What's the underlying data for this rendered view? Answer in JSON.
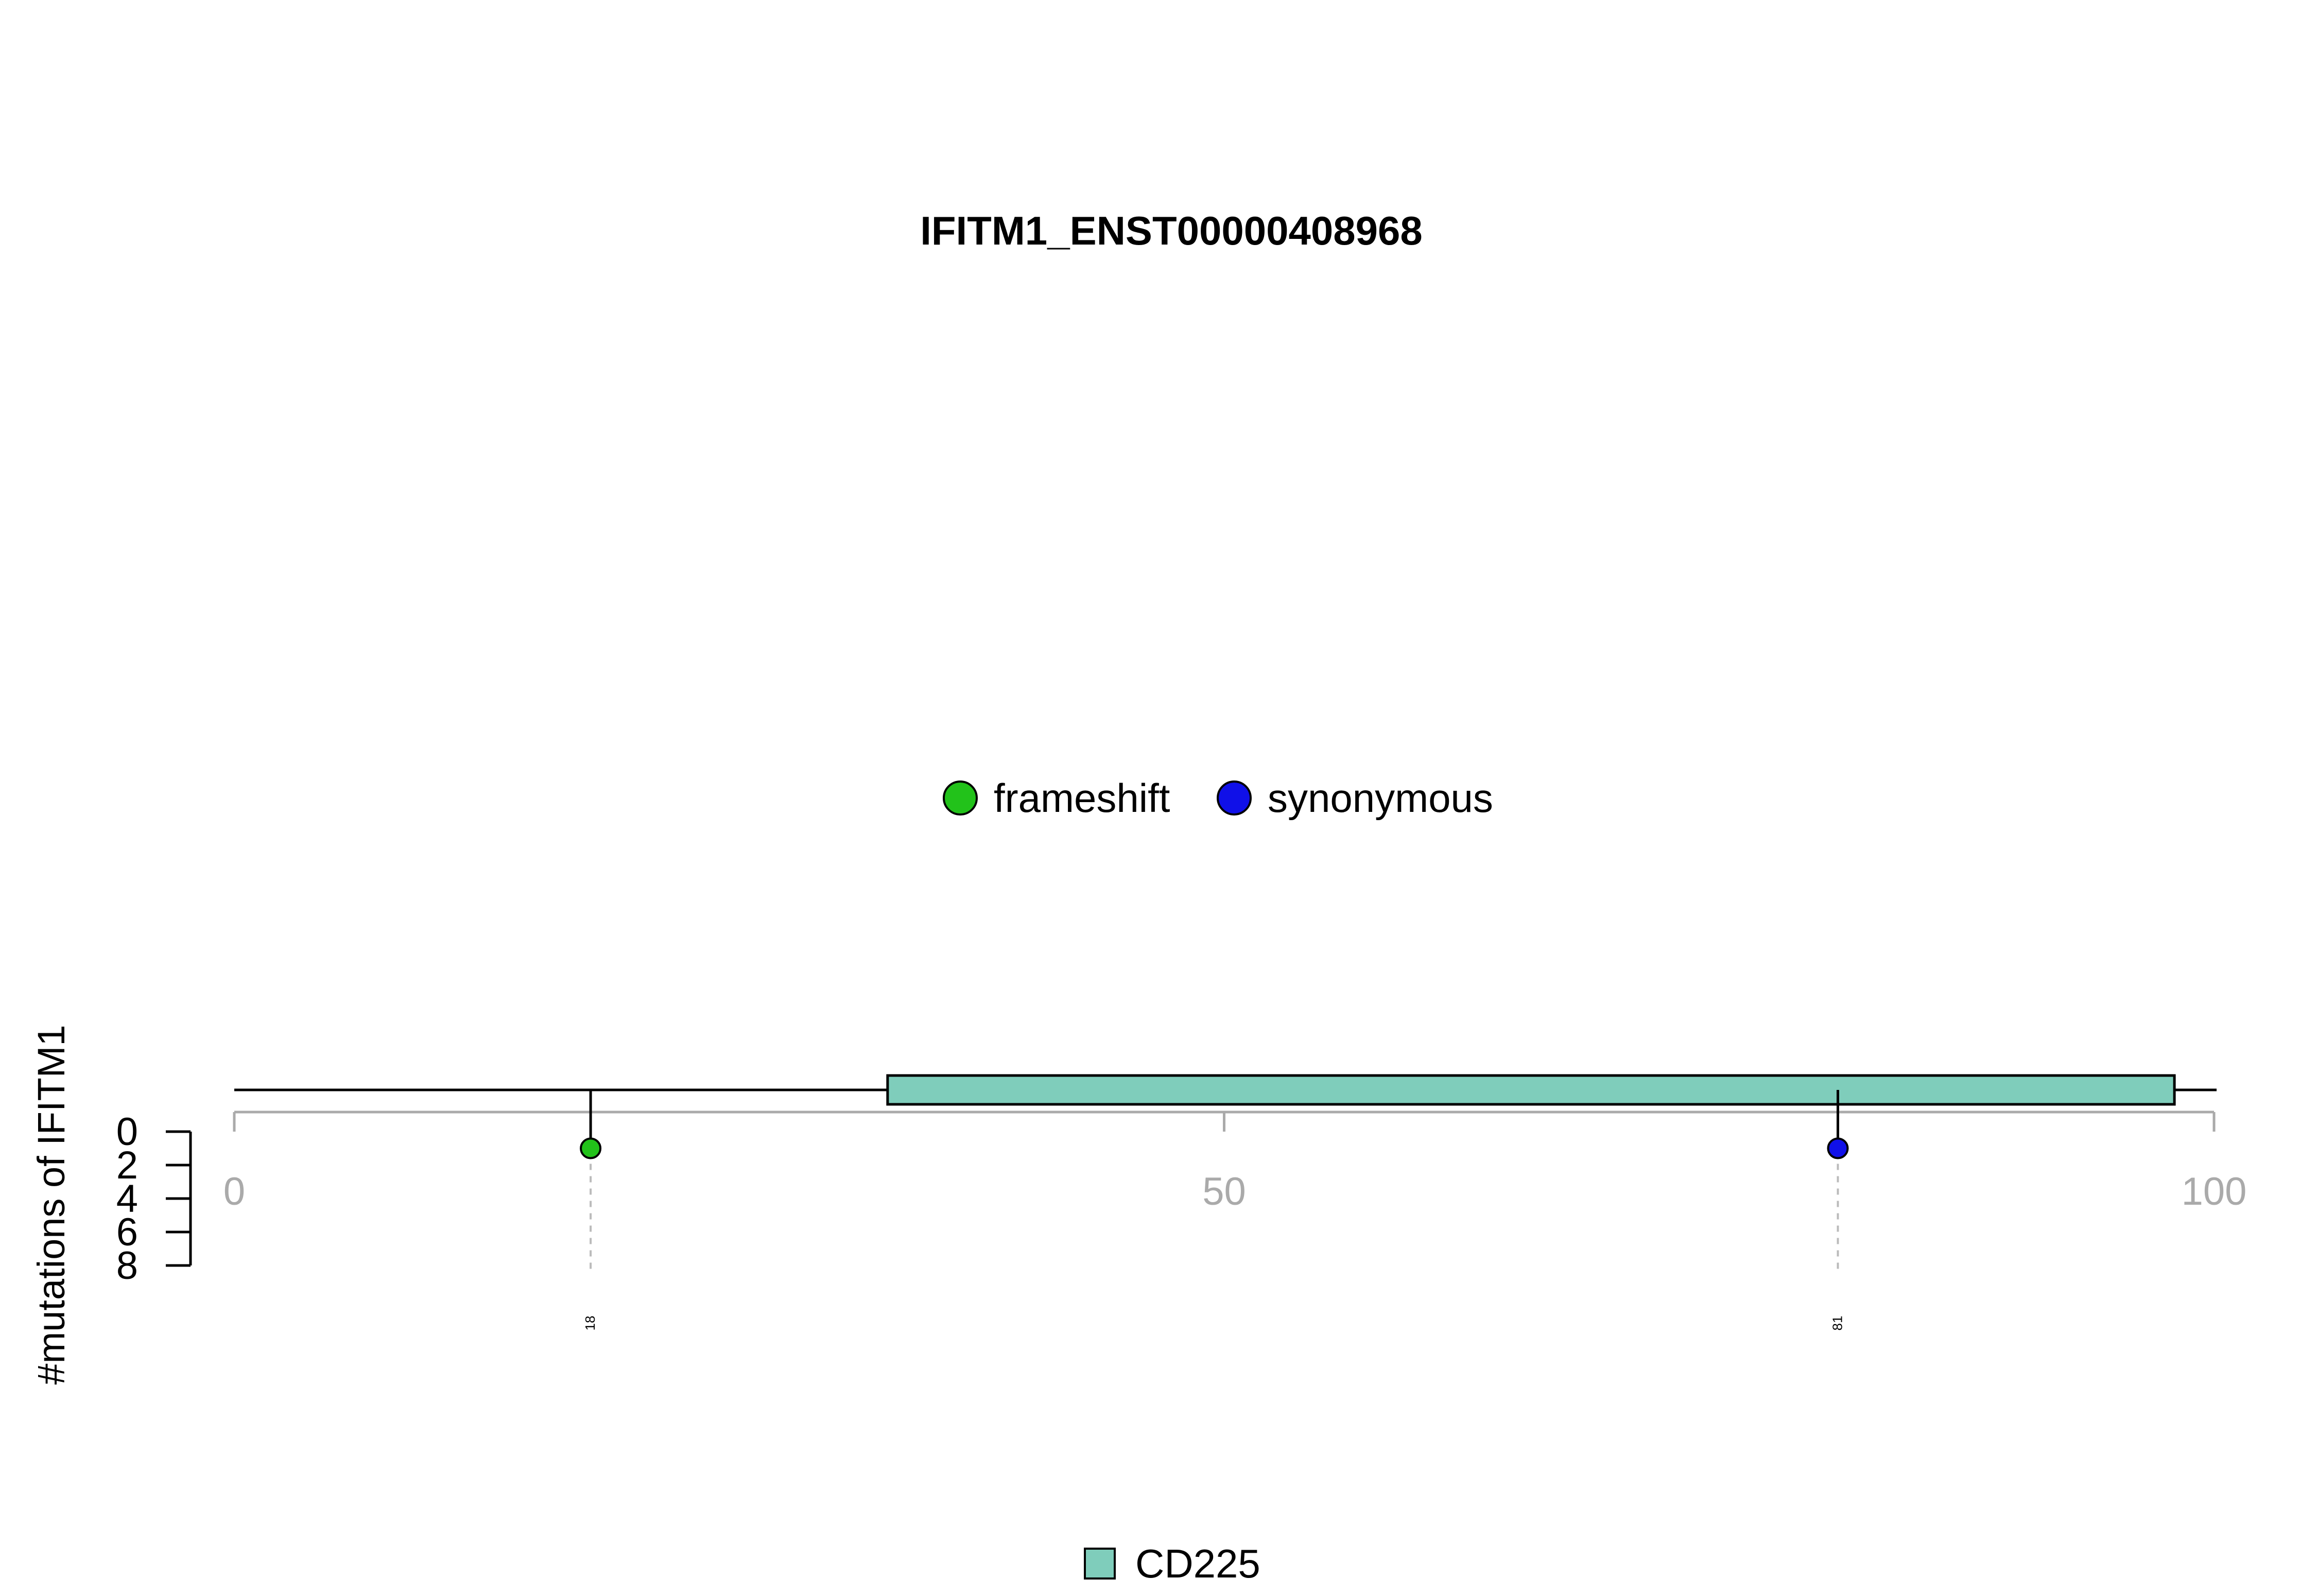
{
  "chart_data": {
    "type": "lollipop",
    "title": "IFITM1_ENST00000408968",
    "ylabel": "#mutations of IFITM1",
    "xlim": [
      0,
      100
    ],
    "x_ticks": [
      0,
      50,
      100
    ],
    "y_ticks": [
      0,
      2,
      4,
      6,
      8
    ],
    "protein_length": 100,
    "legend_mutation_types": [
      {
        "name": "frameshift",
        "color": "#22c21a"
      },
      {
        "name": "synonymous",
        "color": "#1010e8"
      }
    ],
    "mutations": [
      {
        "position": 18,
        "count": 1,
        "type": "frameshift",
        "label": "18",
        "color": "#22c21a"
      },
      {
        "position": 81,
        "count": 1,
        "type": "synonymous",
        "label": "81",
        "color": "#1010e8"
      }
    ],
    "domains": [
      {
        "name": "CD225",
        "start": 33,
        "end": 98,
        "color": "#7fcdbb"
      }
    ],
    "legend_domains": [
      {
        "name": "CD225",
        "color": "#7fcdbb"
      }
    ]
  }
}
